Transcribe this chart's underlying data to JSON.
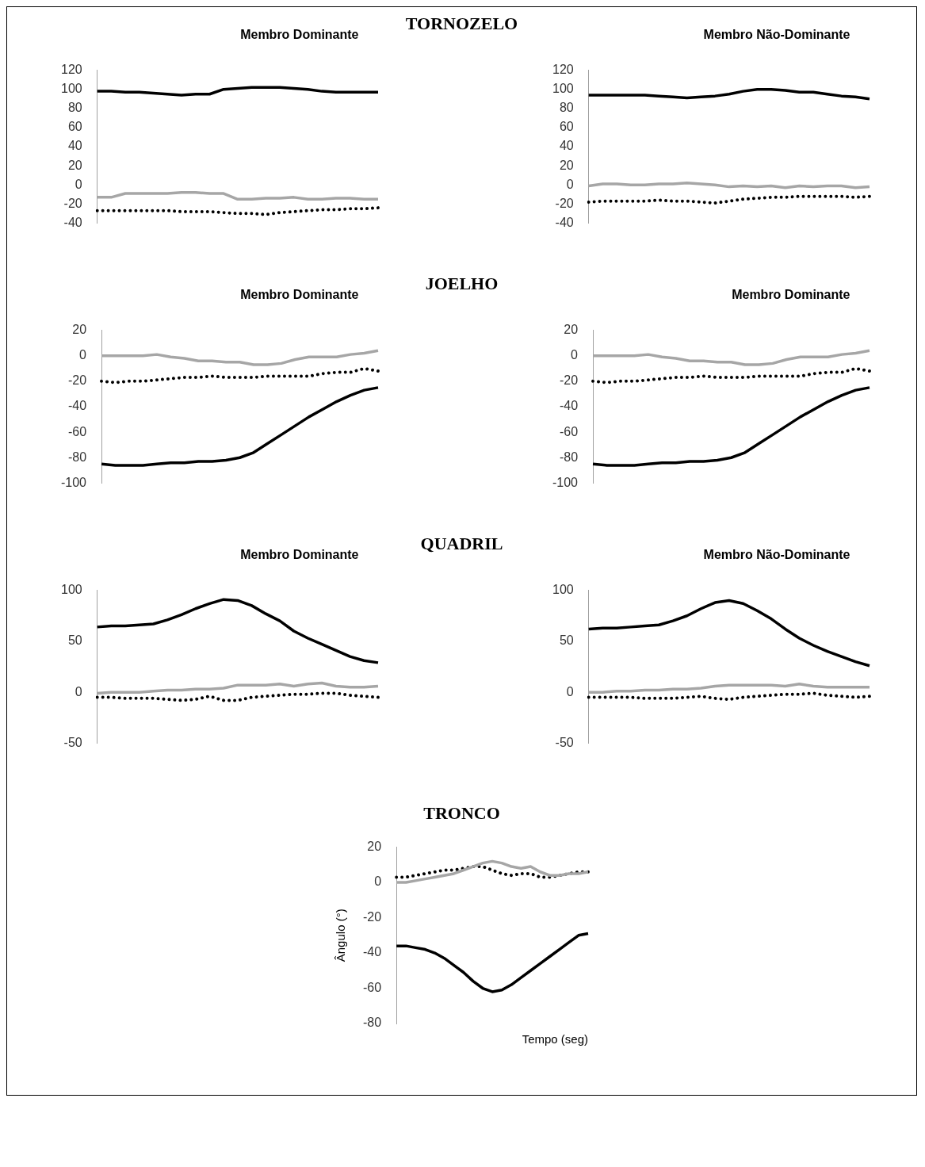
{
  "chart_data": [
    {
      "type": "other",
      "title": "TORNOZELO"
    },
    {
      "type": "line",
      "subtitle": "Membro Dominante",
      "categories": [
        null,
        null,
        null,
        null,
        null,
        null,
        null,
        null,
        null,
        null,
        null,
        null,
        null,
        null,
        null,
        null,
        null,
        null,
        null,
        null,
        null
      ],
      "ylim": [
        -40,
        120
      ],
      "yticks": [
        -40,
        -20,
        0,
        20,
        40,
        60,
        80,
        100,
        120
      ],
      "tick_labels": "y",
      "marker": "none",
      "legend": false,
      "series": [
        {
          "color": "#000000",
          "line_style": "solid",
          "values": [
            98,
            98,
            97,
            97,
            96,
            95,
            94,
            95,
            95,
            100,
            101,
            102,
            102,
            102,
            101,
            100,
            98,
            97,
            97,
            97,
            97
          ]
        },
        {
          "color": "#a6a6a6",
          "line_style": "solid",
          "values": [
            -13,
            -13,
            -9,
            -9,
            -9,
            -9,
            -8,
            -8,
            -9,
            -9,
            -15,
            -15,
            -14,
            -14,
            -13,
            -15,
            -15,
            -14,
            -14,
            -15,
            -15
          ]
        },
        {
          "color": "#000000",
          "line_style": "dotted",
          "values": [
            -27,
            -27,
            -27,
            -27,
            -27,
            -27,
            -28,
            -28,
            -28,
            -29,
            -30,
            -30,
            -31,
            -29,
            -28,
            -27,
            -26,
            -26,
            -25,
            -25,
            -24
          ]
        }
      ]
    },
    {
      "type": "line",
      "subtitle": "Membro Não-Dominante",
      "categories": [
        null,
        null,
        null,
        null,
        null,
        null,
        null,
        null,
        null,
        null,
        null,
        null,
        null,
        null,
        null,
        null,
        null,
        null,
        null,
        null,
        null
      ],
      "ylim": [
        -40,
        120
      ],
      "yticks": [
        -40,
        -20,
        0,
        20,
        40,
        60,
        80,
        100,
        120
      ],
      "tick_labels": "y",
      "marker": "none",
      "legend": false,
      "series": [
        {
          "color": "#000000",
          "line_style": "solid",
          "values": [
            94,
            94,
            94,
            94,
            94,
            93,
            92,
            91,
            92,
            93,
            95,
            98,
            100,
            100,
            99,
            97,
            97,
            95,
            93,
            92,
            90
          ]
        },
        {
          "color": "#a6a6a6",
          "line_style": "solid",
          "values": [
            -1,
            1,
            1,
            0,
            0,
            1,
            1,
            2,
            1,
            0,
            -2,
            -1,
            -2,
            -1,
            -3,
            -1,
            -2,
            -1,
            -1,
            -3,
            -2
          ]
        },
        {
          "color": "#000000",
          "line_style": "dotted",
          "values": [
            -18,
            -17,
            -17,
            -17,
            -17,
            -16,
            -17,
            -17,
            -18,
            -19,
            -17,
            -15,
            -14,
            -13,
            -13,
            -12,
            -12,
            -12,
            -12,
            -13,
            -12
          ]
        }
      ]
    },
    {
      "type": "other",
      "title": "JOELHO"
    },
    {
      "type": "line",
      "subtitle": "Membro Dominante",
      "categories": [
        null,
        null,
        null,
        null,
        null,
        null,
        null,
        null,
        null,
        null,
        null,
        null,
        null,
        null,
        null,
        null,
        null,
        null,
        null,
        null,
        null
      ],
      "ylim": [
        -100,
        20
      ],
      "yticks": [
        -100,
        -80,
        -60,
        -40,
        -20,
        0,
        20
      ],
      "tick_labels": "y",
      "marker": "none",
      "legend": false,
      "series": [
        {
          "color": "#000000",
          "line_style": "solid",
          "values": [
            -85,
            -86,
            -86,
            -86,
            -85,
            -84,
            -84,
            -83,
            -83,
            -82,
            -80,
            -76,
            -69,
            -62,
            -55,
            -48,
            -42,
            -36,
            -31,
            -27,
            -25
          ]
        },
        {
          "color": "#a6a6a6",
          "line_style": "solid",
          "values": [
            0,
            0,
            0,
            0,
            1,
            -1,
            -2,
            -4,
            -4,
            -5,
            -5,
            -7,
            -7,
            -6,
            -3,
            -1,
            -1,
            -1,
            1,
            2,
            4
          ]
        },
        {
          "color": "#000000",
          "line_style": "dotted",
          "values": [
            -20,
            -21,
            -20,
            -20,
            -19,
            -18,
            -17,
            -17,
            -16,
            -17,
            -17,
            -17,
            -16,
            -16,
            -16,
            -16,
            -14,
            -13,
            -13,
            -10,
            -12
          ]
        }
      ]
    },
    {
      "type": "line",
      "subtitle": "Membro Dominante",
      "categories": [
        null,
        null,
        null,
        null,
        null,
        null,
        null,
        null,
        null,
        null,
        null,
        null,
        null,
        null,
        null,
        null,
        null,
        null,
        null,
        null,
        null
      ],
      "ylim": [
        -100,
        20
      ],
      "yticks": [
        -100,
        -80,
        -60,
        -40,
        -20,
        0,
        20
      ],
      "tick_labels": "y",
      "marker": "none",
      "legend": false,
      "series": [
        {
          "color": "#000000",
          "line_style": "solid",
          "values": [
            -85,
            -86,
            -86,
            -86,
            -85,
            -84,
            -84,
            -83,
            -83,
            -82,
            -80,
            -76,
            -69,
            -62,
            -55,
            -48,
            -42,
            -36,
            -31,
            -27,
            -25
          ]
        },
        {
          "color": "#a6a6a6",
          "line_style": "solid",
          "values": [
            0,
            0,
            0,
            0,
            1,
            -1,
            -2,
            -4,
            -4,
            -5,
            -5,
            -7,
            -7,
            -6,
            -3,
            -1,
            -1,
            -1,
            1,
            2,
            4
          ]
        },
        {
          "color": "#000000",
          "line_style": "dotted",
          "values": [
            -20,
            -21,
            -20,
            -20,
            -19,
            -18,
            -17,
            -17,
            -16,
            -17,
            -17,
            -17,
            -16,
            -16,
            -16,
            -16,
            -14,
            -13,
            -13,
            -10,
            -12
          ]
        }
      ]
    },
    {
      "type": "other",
      "title": "QUADRIL"
    },
    {
      "type": "line",
      "subtitle": "Membro Dominante",
      "categories": [
        null,
        null,
        null,
        null,
        null,
        null,
        null,
        null,
        null,
        null,
        null,
        null,
        null,
        null,
        null,
        null,
        null,
        null,
        null,
        null,
        null
      ],
      "ylim": [
        -50,
        100
      ],
      "yticks": [
        -50,
        0,
        50,
        100
      ],
      "tick_labels": "y",
      "marker": "none",
      "legend": false,
      "series": [
        {
          "color": "#000000",
          "line_style": "solid",
          "values": [
            64,
            65,
            65,
            66,
            67,
            71,
            76,
            82,
            87,
            91,
            90,
            85,
            77,
            70,
            60,
            53,
            47,
            41,
            35,
            31,
            29
          ]
        },
        {
          "color": "#a6a6a6",
          "line_style": "solid",
          "values": [
            -1,
            0,
            0,
            0,
            1,
            2,
            2,
            3,
            3,
            4,
            7,
            7,
            7,
            8,
            6,
            8,
            9,
            6,
            5,
            5,
            6
          ]
        },
        {
          "color": "#000000",
          "line_style": "dotted",
          "values": [
            -5,
            -5,
            -6,
            -6,
            -6,
            -7,
            -8,
            -7,
            -4,
            -8,
            -8,
            -5,
            -4,
            -3,
            -2,
            -2,
            -1,
            -1,
            -3,
            -4,
            -5
          ]
        }
      ]
    },
    {
      "type": "line",
      "subtitle": "Membro Não-Dominante",
      "categories": [
        null,
        null,
        null,
        null,
        null,
        null,
        null,
        null,
        null,
        null,
        null,
        null,
        null,
        null,
        null,
        null,
        null,
        null,
        null,
        null,
        null
      ],
      "ylim": [
        -50,
        100
      ],
      "yticks": [
        -50,
        0,
        50,
        100
      ],
      "tick_labels": "y",
      "marker": "none",
      "legend": false,
      "series": [
        {
          "color": "#000000",
          "line_style": "solid",
          "values": [
            62,
            63,
            63,
            64,
            65,
            66,
            70,
            75,
            82,
            88,
            90,
            87,
            80,
            72,
            62,
            53,
            46,
            40,
            35,
            30,
            26
          ]
        },
        {
          "color": "#a6a6a6",
          "line_style": "solid",
          "values": [
            0,
            0,
            1,
            1,
            2,
            2,
            3,
            3,
            4,
            6,
            7,
            7,
            7,
            7,
            6,
            8,
            6,
            5,
            5,
            5,
            5
          ]
        },
        {
          "color": "#000000",
          "line_style": "dotted",
          "values": [
            -5,
            -5,
            -5,
            -5,
            -6,
            -6,
            -6,
            -5,
            -4,
            -6,
            -7,
            -5,
            -4,
            -3,
            -2,
            -2,
            -1,
            -3,
            -4,
            -5,
            -4
          ]
        }
      ]
    },
    {
      "type": "line",
      "title": "TRONCO",
      "xlabel": "Tempo (seg)",
      "ylabel": "Ângulo (°)",
      "categories": [
        null,
        null,
        null,
        null,
        null,
        null,
        null,
        null,
        null,
        null,
        null,
        null,
        null,
        null,
        null,
        null,
        null,
        null,
        null,
        null,
        null
      ],
      "ylim": [
        -80,
        20
      ],
      "yticks": [
        -80,
        -60,
        -40,
        -20,
        0,
        20
      ],
      "tick_labels": "y",
      "marker": "none",
      "legend": false,
      "series": [
        {
          "color": "#000000",
          "line_style": "solid",
          "values": [
            -36,
            -36,
            -37,
            -38,
            -40,
            -43,
            -47,
            -51,
            -56,
            -60,
            -62,
            -61,
            -58,
            -54,
            -50,
            -46,
            -42,
            -38,
            -34,
            -30,
            -29
          ]
        },
        {
          "color": "#a6a6a6",
          "line_style": "solid",
          "values": [
            0,
            0,
            1,
            2,
            3,
            4,
            5,
            7,
            9,
            11,
            12,
            11,
            9,
            8,
            9,
            6,
            4,
            4,
            5,
            5,
            6
          ]
        },
        {
          "color": "#000000",
          "line_style": "dotted",
          "values": [
            3,
            3,
            4,
            5,
            6,
            7,
            7,
            8,
            9,
            9,
            7,
            5,
            4,
            5,
            5,
            3,
            3,
            4,
            5,
            6,
            6
          ]
        }
      ]
    }
  ]
}
